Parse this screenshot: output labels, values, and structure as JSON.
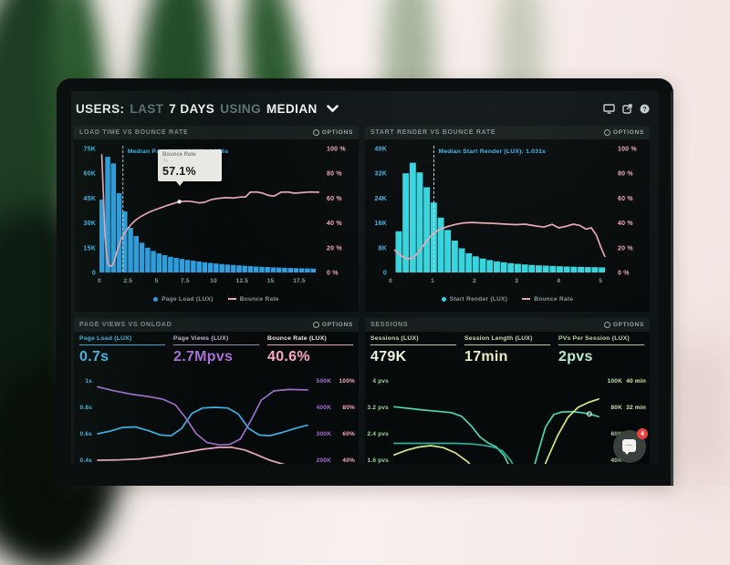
{
  "header": {
    "segments": [
      {
        "text": "USERS:"
      },
      {
        "text": "LAST"
      },
      {
        "text": "7 DAYS"
      },
      {
        "text": "USING"
      },
      {
        "text": "MEDIAN"
      }
    ],
    "icons": [
      "display-icon",
      "share-icon",
      "help-icon"
    ]
  },
  "theme": {
    "bar_blue": "#2f9fe0",
    "bar_teal": "#36d4de",
    "bounce_pink": "#e9a6b4",
    "axis_cyan": "#3fb9ee",
    "axis_pink": "#f0a8ba",
    "axis_purple": "#a86fd4",
    "axis_green": "#b9e4b4",
    "axis_yellow": "#dde9a8",
    "panel_bg": "#060a0a",
    "screen_bg": "#0e1415"
  },
  "widget": {
    "badge": "4",
    "name": "chat-widget"
  },
  "chart_data": [
    {
      "type": "bar+line",
      "title": "LOAD TIME VS BOUNCE RATE",
      "options_label": "OPTIONS",
      "legend": [
        "Page Load (LUX)",
        "Bounce Rate"
      ],
      "x_max": 19.5,
      "x_ticks": [
        0,
        2.5,
        5,
        7.5,
        10,
        12.5,
        15,
        17.5
      ],
      "left_axis": {
        "ticks": [
          "75K",
          "60K",
          "45K",
          "30K",
          "15K",
          "0"
        ],
        "max": 75
      },
      "right_axis": {
        "ticks": [
          "100 %",
          "80 %",
          "60 %",
          "40 %",
          "20 %",
          "0 %"
        ],
        "max": 100
      },
      "median": {
        "x": 2.056,
        "label": "Median Page Load (LUX): 2.056s"
      },
      "bars": {
        "start": 0,
        "step": 0.5,
        "unit": "K",
        "values": [
          44,
          70,
          66,
          48,
          37,
          27,
          22,
          18,
          15,
          13,
          11.5,
          10.5,
          9.5,
          8.8,
          8.2,
          7.6,
          7.1,
          6.6,
          6.2,
          5.8,
          5.4,
          5.1,
          4.8,
          4.5,
          4.3,
          4.0,
          3.8,
          3.6,
          3.4,
          3.3,
          3.1,
          3.0,
          2.8,
          2.7,
          2.6,
          2.5,
          2.4,
          2.3
        ]
      },
      "line_pts": [
        [
          0.2,
          95
        ],
        [
          0.3,
          72
        ],
        [
          0.45,
          38
        ],
        [
          0.6,
          16
        ],
        [
          0.75,
          7
        ],
        [
          0.95,
          5
        ],
        [
          1.15,
          6
        ],
        [
          1.35,
          11
        ],
        [
          1.6,
          19
        ],
        [
          1.85,
          26
        ],
        [
          2.1,
          30
        ],
        [
          2.4,
          34.5
        ],
        [
          2.8,
          39
        ],
        [
          3.2,
          42.5
        ],
        [
          3.7,
          45.5
        ],
        [
          4.2,
          48
        ],
        [
          4.7,
          50
        ],
        [
          5.3,
          52
        ],
        [
          5.9,
          54
        ],
        [
          6.5,
          55.7
        ],
        [
          7.0,
          57.1
        ],
        [
          7.6,
          57.6
        ],
        [
          8.1,
          57.2
        ],
        [
          8.7,
          56.2
        ],
        [
          9.2,
          56.6
        ],
        [
          9.8,
          58.8
        ],
        [
          10.4,
          59.8
        ],
        [
          11.1,
          60.4
        ],
        [
          11.7,
          60.1
        ],
        [
          12.3,
          60.8
        ],
        [
          12.8,
          61
        ],
        [
          13.2,
          64.8
        ],
        [
          13.8,
          64.9
        ],
        [
          14.3,
          64
        ],
        [
          14.8,
          62.2
        ],
        [
          15.3,
          61.6
        ],
        [
          15.9,
          64.8
        ],
        [
          16.5,
          64.9
        ],
        [
          17.1,
          64
        ],
        [
          17.7,
          64.4
        ],
        [
          18.4,
          64.9
        ],
        [
          19.2,
          64.8
        ]
      ],
      "marker": [
        7.0,
        57.1
      ],
      "tooltip": {
        "title": "Bounce Rate",
        "sub": "7s",
        "value": "57.1%"
      },
      "colors": {
        "bars": "#2f9fe0",
        "line": "#e9a6b4",
        "left_text": "#3fb9ee",
        "right_text": "#f0a8ba",
        "median_text": "#3fb9ee"
      }
    },
    {
      "type": "bar+line",
      "title": "START RENDER VS BOUNCE RATE",
      "options_label": "OPTIONS",
      "legend": [
        "Start Render (LUX)",
        "Bounce Rate"
      ],
      "x_max": 5.3,
      "x_ticks": [
        0,
        1,
        2,
        3,
        4,
        5
      ],
      "left_axis": {
        "ticks": [
          "40K",
          "32K",
          "24K",
          "16K",
          "8K",
          "0"
        ],
        "max": 40
      },
      "right_axis": {
        "ticks": [
          "100 %",
          "80 %",
          "60 %",
          "40 %",
          "20 %",
          "0 %"
        ],
        "max": 100
      },
      "median": {
        "x": 1.031,
        "label": "Median Start Render (LUX): 1.031s"
      },
      "bars": {
        "start": 0.12,
        "step": 0.1667,
        "unit": "K",
        "values": [
          13.3,
          32,
          35.4,
          32.3,
          27.5,
          22.6,
          17.7,
          13.7,
          10.3,
          7.8,
          6.2,
          5.2,
          4.5,
          4.0,
          3.6,
          3.3,
          3.0,
          2.8,
          2.6,
          2.4,
          2.3,
          2.2,
          2.1,
          2.0,
          1.9,
          1.85,
          1.8,
          1.75,
          1.7,
          1.65
        ]
      },
      "line_pts": [
        [
          0.1,
          18
        ],
        [
          0.25,
          13.5
        ],
        [
          0.4,
          10.8
        ],
        [
          0.55,
          12
        ],
        [
          0.7,
          18
        ],
        [
          0.85,
          25
        ],
        [
          1.0,
          31
        ],
        [
          1.15,
          34.5
        ],
        [
          1.35,
          37
        ],
        [
          1.55,
          38.8
        ],
        [
          1.75,
          40
        ],
        [
          1.95,
          40.4
        ],
        [
          2.15,
          40
        ],
        [
          2.45,
          39.6
        ],
        [
          2.75,
          39
        ],
        [
          3.0,
          38.6
        ],
        [
          3.2,
          39
        ],
        [
          3.45,
          37.6
        ],
        [
          3.65,
          36.6
        ],
        [
          3.85,
          38.8
        ],
        [
          4.0,
          36
        ],
        [
          4.15,
          37
        ],
        [
          4.35,
          39
        ],
        [
          4.5,
          38
        ],
        [
          4.65,
          35
        ],
        [
          4.78,
          36
        ],
        [
          4.9,
          30
        ],
        [
          5.0,
          21
        ],
        [
          5.1,
          13
        ]
      ],
      "colors": {
        "bars": "#36d4de",
        "line": "#e9a6b4",
        "left_text": "#3fb9ee",
        "right_text": "#f0a8ba",
        "median_text": "#3fb9ee"
      }
    },
    {
      "type": "line",
      "title": "PAGE VIEWS VS ONLOAD",
      "options_label": "OPTIONS",
      "metrics": [
        {
          "label": "Page Load (LUX)",
          "value": "0.7s"
        },
        {
          "label": "Page Views (LUX)",
          "value": "2.7Mpvs"
        },
        {
          "label": "Bounce Rate (LUX)",
          "value": "40.6%"
        }
      ],
      "left_axis": {
        "ticks": [
          "1s",
          "0.8s",
          "0.6s",
          "0.4s"
        ],
        "top": 1.0,
        "step": 0.2,
        "color": "#45b9ec"
      },
      "right_axes": [
        {
          "ticks": [
            "500K",
            "400K",
            "300K",
            "200K"
          ],
          "color": "#a86fd4"
        },
        {
          "ticks": [
            "100%",
            "80%",
            "60%",
            "40%"
          ],
          "color": "#f6a8c6"
        }
      ],
      "series": [
        {
          "name": "page-load",
          "color": "#3fb0e4",
          "pts": [
            [
              0,
              0.6
            ],
            [
              0.06,
              0.62
            ],
            [
              0.12,
              0.648
            ],
            [
              0.18,
              0.652
            ],
            [
              0.24,
              0.625
            ],
            [
              0.3,
              0.59
            ],
            [
              0.35,
              0.585
            ],
            [
              0.4,
              0.64
            ],
            [
              0.45,
              0.755
            ],
            [
              0.5,
              0.795
            ],
            [
              0.56,
              0.8
            ],
            [
              0.62,
              0.795
            ],
            [
              0.67,
              0.75
            ],
            [
              0.72,
              0.64
            ],
            [
              0.77,
              0.59
            ],
            [
              0.82,
              0.585
            ],
            [
              0.88,
              0.61
            ],
            [
              0.94,
              0.64
            ],
            [
              1,
              0.665
            ]
          ]
        },
        {
          "name": "page-views",
          "color": "#9b6fc8",
          "pts": [
            [
              0,
              0.955
            ],
            [
              0.08,
              0.925
            ],
            [
              0.16,
              0.9
            ],
            [
              0.24,
              0.882
            ],
            [
              0.31,
              0.862
            ],
            [
              0.37,
              0.82
            ],
            [
              0.42,
              0.72
            ],
            [
              0.47,
              0.6
            ],
            [
              0.52,
              0.535
            ],
            [
              0.58,
              0.515
            ],
            [
              0.63,
              0.52
            ],
            [
              0.68,
              0.56
            ],
            [
              0.73,
              0.7
            ],
            [
              0.78,
              0.855
            ],
            [
              0.84,
              0.925
            ],
            [
              0.91,
              0.935
            ],
            [
              1,
              0.932
            ]
          ]
        },
        {
          "name": "bounce-rate",
          "color": "#e8a8bc",
          "pts": [
            [
              0,
              0.4
            ],
            [
              0.1,
              0.402
            ],
            [
              0.2,
              0.41
            ],
            [
              0.3,
              0.428
            ],
            [
              0.4,
              0.455
            ],
            [
              0.5,
              0.483
            ],
            [
              0.58,
              0.497
            ],
            [
              0.64,
              0.497
            ],
            [
              0.7,
              0.478
            ],
            [
              0.76,
              0.44
            ],
            [
              0.82,
              0.4
            ],
            [
              0.88,
              0.372
            ],
            [
              0.94,
              0.352
            ],
            [
              1,
              0.342
            ]
          ]
        }
      ]
    },
    {
      "type": "line",
      "title": "SESSIONS",
      "options_label": "OPTIONS",
      "metrics": [
        {
          "label": "Sessions (LUX)",
          "value": "479K"
        },
        {
          "label": "Session Length (LUX)",
          "value": "17min"
        },
        {
          "label": "PVs Per Session (LUX)",
          "value": "2pvs"
        }
      ],
      "left_axis": {
        "ticks": [
          "4 pvs",
          "3.2 pvs",
          "2.4 pvs",
          "1.6 pvs"
        ],
        "top": 4.0,
        "step": 0.8,
        "color": "#9fd89a"
      },
      "right_axes": [
        {
          "ticks": [
            "100K",
            "80K",
            "60K",
            "40K"
          ],
          "color": "#bfe0b0"
        },
        {
          "ticks": [
            "40 min",
            "32 min",
            "24 min",
            ""
          ],
          "color": "#dde9a8"
        }
      ],
      "series": [
        {
          "name": "sessions",
          "color": "#4fd4ae",
          "marker": [
            0.955,
            3.0
          ],
          "pts": [
            [
              0,
              3.22
            ],
            [
              0.07,
              3.17
            ],
            [
              0.14,
              3.12
            ],
            [
              0.21,
              3.08
            ],
            [
              0.28,
              3.04
            ],
            [
              0.33,
              2.93
            ],
            [
              0.38,
              2.62
            ],
            [
              0.42,
              2.3
            ],
            [
              0.46,
              2.12
            ],
            [
              0.5,
              2.0
            ],
            [
              0.54,
              1.72
            ],
            [
              0.58,
              1.2
            ],
            [
              0.61,
              0.75
            ],
            [
              0.635,
              0.55
            ],
            [
              0.66,
              0.85
            ],
            [
              0.7,
              1.75
            ],
            [
              0.74,
              2.6
            ],
            [
              0.78,
              2.98
            ],
            [
              0.82,
              3.06
            ],
            [
              0.87,
              3.07
            ],
            [
              0.92,
              3.04
            ],
            [
              0.96,
              2.99
            ],
            [
              1,
              2.92
            ]
          ]
        },
        {
          "name": "pvs-per-session",
          "color": "#2fae9a",
          "pts": [
            [
              0,
              2.11
            ],
            [
              0.3,
              2.11
            ],
            [
              0.38,
              2.09
            ],
            [
              0.44,
              2.05
            ],
            [
              0.49,
              1.99
            ],
            [
              0.53,
              1.88
            ],
            [
              0.57,
              1.6
            ],
            [
              0.6,
              1.2
            ],
            [
              0.63,
              0.7
            ],
            [
              0.65,
              0.3
            ]
          ]
        },
        {
          "name": "session-length",
          "color": "#d9e48a",
          "pts": [
            [
              0,
              1.76
            ],
            [
              0.06,
              1.9
            ],
            [
              0.12,
              2.0
            ],
            [
              0.18,
              2.04
            ],
            [
              0.24,
              1.98
            ],
            [
              0.3,
              1.82
            ],
            [
              0.36,
              1.55
            ],
            [
              0.41,
              1.2
            ],
            [
              0.45,
              0.75
            ],
            [
              0.48,
              0.35
            ],
            [
              0.5,
              0.05
            ],
            [
              0.56,
              -0.6
            ],
            [
              0.62,
              -0.6
            ],
            [
              0.66,
              0.2
            ],
            [
              0.7,
              0.9
            ],
            [
              0.75,
              1.65
            ],
            [
              0.8,
              2.35
            ],
            [
              0.85,
              2.9
            ],
            [
              0.9,
              3.2
            ],
            [
              0.95,
              3.35
            ],
            [
              1,
              3.45
            ]
          ]
        }
      ]
    }
  ]
}
